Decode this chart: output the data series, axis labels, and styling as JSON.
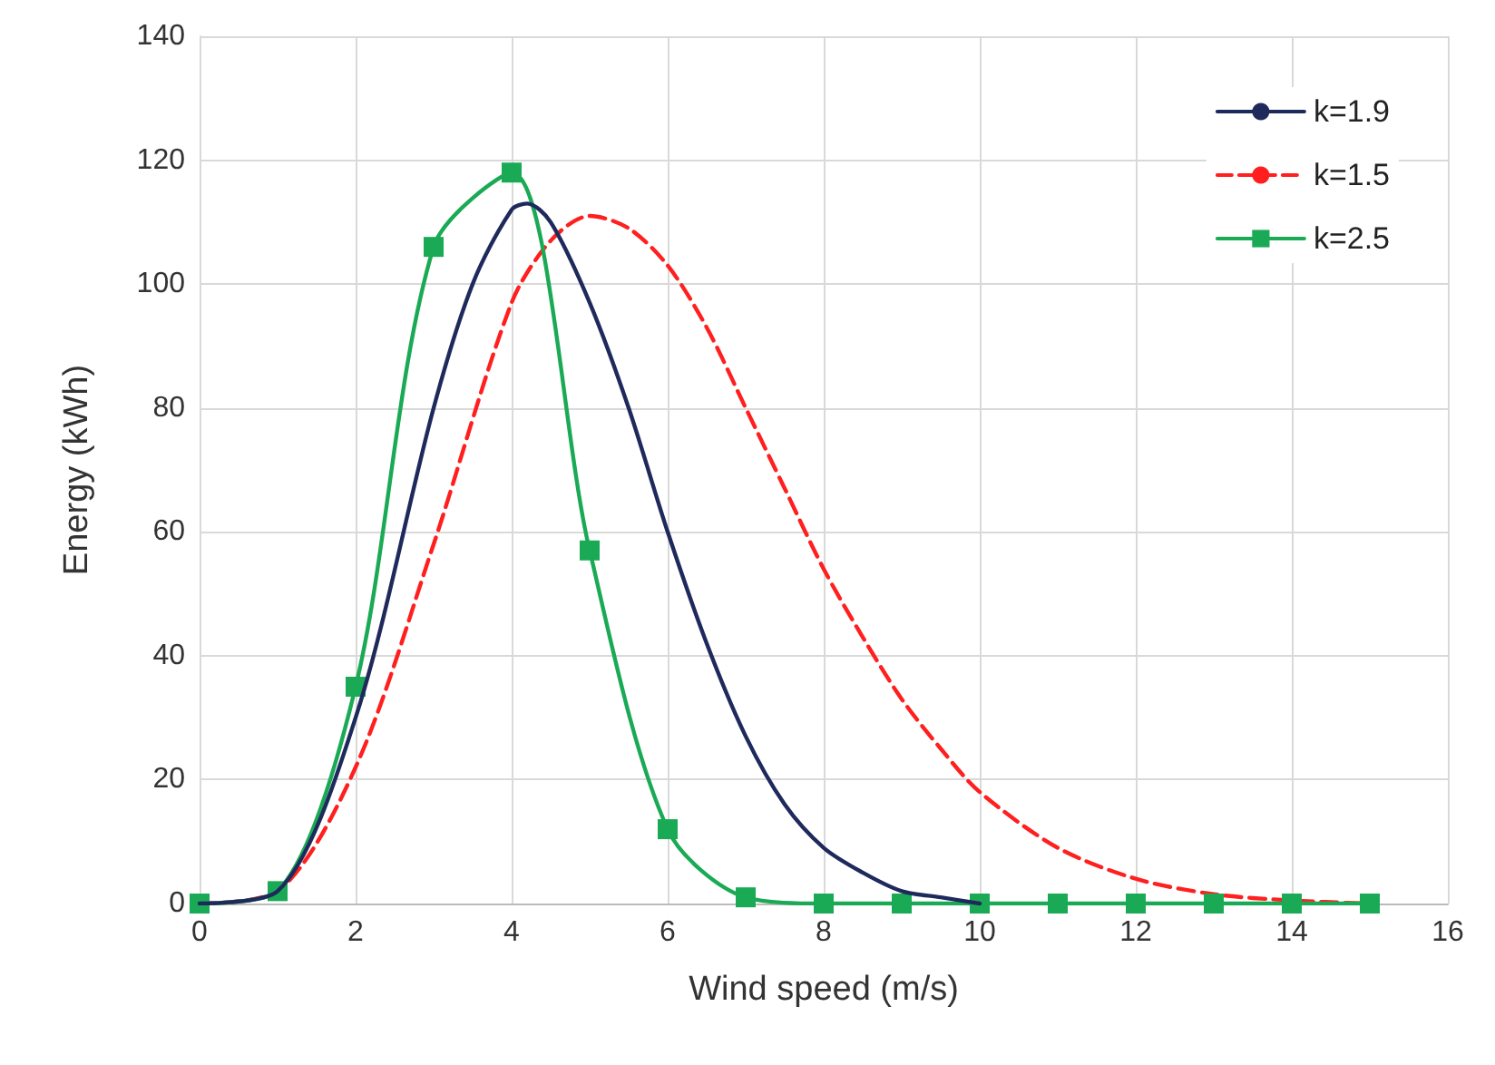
{
  "chart_data": {
    "type": "line",
    "xlabel": "Wind speed (m/s)",
    "ylabel": "Energy (kWh)",
    "xlim": [
      0,
      16
    ],
    "xticks": [
      0,
      2,
      4,
      6,
      8,
      10,
      12,
      14,
      16
    ],
    "ylim": [
      0,
      140
    ],
    "yticks": [
      0,
      20,
      40,
      60,
      80,
      100,
      120,
      140
    ],
    "grid": true,
    "legend": "top right",
    "series": [
      {
        "name": "k=1.9",
        "color": "#1f2a5c",
        "line_style": "solid",
        "marker": "none",
        "x": [
          0,
          1,
          2,
          3,
          3.5,
          4,
          4.2,
          4.5,
          5,
          5.5,
          6,
          6.5,
          7,
          7.5,
          8,
          8.5,
          9,
          9.5,
          10
        ],
        "values": [
          0,
          2,
          30,
          80,
          100,
          112,
          113,
          110,
          97,
          80,
          60,
          42,
          27,
          16,
          9,
          5,
          2,
          1,
          0
        ]
      },
      {
        "name": "k=1.5",
        "color": "#ff1f1f",
        "line_style": "dashed",
        "marker": "none",
        "x": [
          0,
          1,
          2,
          3,
          4,
          4.5,
          5,
          5.5,
          6,
          6.5,
          7,
          7.5,
          8,
          8.5,
          9,
          9.5,
          10,
          11,
          12,
          13,
          14,
          15
        ],
        "values": [
          0,
          2,
          22,
          58,
          97,
          107,
          111,
          109,
          103,
          93,
          80,
          67,
          54,
          43,
          33,
          25,
          18,
          9,
          4,
          1.5,
          0.5,
          0
        ]
      },
      {
        "name": "k=2.5",
        "color": "#1aaa55",
        "line_style": "solid",
        "marker": "square",
        "x": [
          0,
          1,
          2,
          3,
          4,
          5,
          6,
          7,
          8,
          9,
          10,
          11,
          12,
          13,
          14,
          15
        ],
        "values": [
          0,
          2,
          35,
          106,
          118,
          57,
          12,
          1,
          0,
          0,
          0,
          0,
          0,
          0,
          0,
          0
        ]
      }
    ]
  }
}
